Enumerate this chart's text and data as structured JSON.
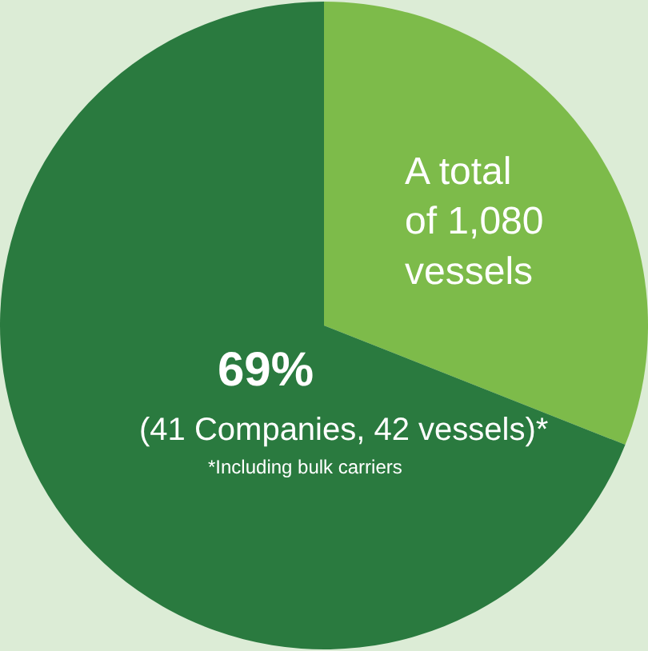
{
  "chart_data": {
    "type": "pie",
    "categories": [
      null,
      null
    ],
    "values": [
      31,
      69
    ],
    "colors": [
      "#7dbb4a",
      "#2a7a3f"
    ],
    "value_labels": [
      null,
      "69%"
    ],
    "annotations": [
      "A total of 1,080 vessels",
      "(41 Companies, 42 vessels)*",
      "*Including bulk carriers"
    ],
    "legend": false
  }
}
